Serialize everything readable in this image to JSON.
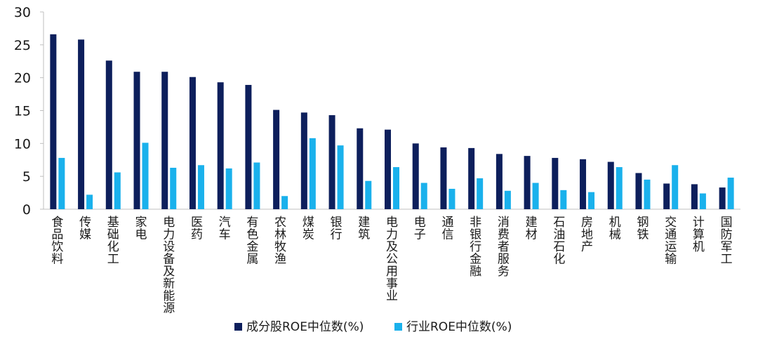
{
  "chart_data": {
    "type": "bar",
    "title": "",
    "xlabel": "",
    "ylabel": "",
    "ylim": [
      0,
      30
    ],
    "yticks": [
      0,
      5,
      10,
      15,
      20,
      25,
      30
    ],
    "grid": false,
    "legend_position": "bottom",
    "categories": [
      "食品饮料",
      "传媒",
      "基础化工",
      "家电",
      "电力设备及新能源",
      "医药",
      "汽车",
      "有色金属",
      "农林牧渔",
      "煤炭",
      "银行",
      "建筑",
      "电力及公用事业",
      "电子",
      "通信",
      "非银行金融",
      "消费者服务",
      "建材",
      "石油石化",
      "房地产",
      "机械",
      "钢铁",
      "交通运输",
      "计算机",
      "国防军工"
    ],
    "series": [
      {
        "name": "成分股ROE中位数(%)",
        "color": "#0d1f5c",
        "values": [
          26.6,
          25.8,
          22.6,
          20.9,
          20.9,
          20.1,
          19.3,
          18.9,
          15.1,
          14.7,
          14.3,
          12.3,
          12.1,
          10.0,
          9.4,
          9.3,
          8.4,
          8.1,
          7.8,
          7.6,
          7.2,
          5.5,
          3.9,
          3.8,
          3.3
        ]
      },
      {
        "name": "行业ROE中位数(%)",
        "color": "#1ab1ec",
        "values": [
          7.8,
          2.2,
          5.6,
          10.1,
          6.3,
          6.7,
          6.2,
          7.1,
          2.0,
          10.8,
          9.7,
          4.3,
          6.4,
          4.0,
          3.1,
          4.7,
          2.8,
          4.0,
          2.9,
          2.6,
          6.4,
          4.5,
          6.7,
          2.4,
          4.8
        ]
      }
    ]
  }
}
